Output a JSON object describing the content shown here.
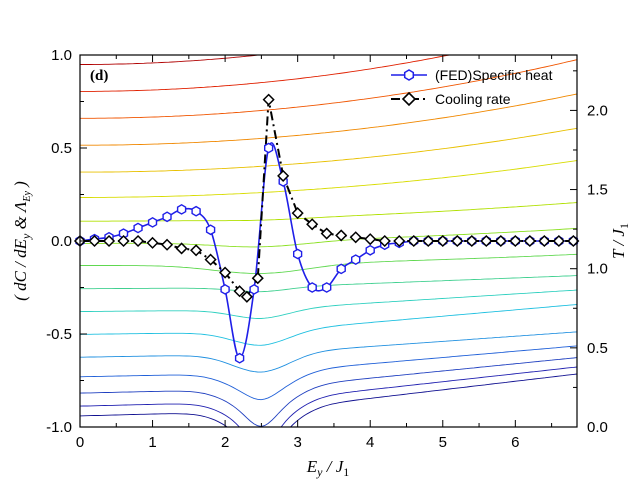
{
  "chart_data": {
    "type": "line",
    "panel_label": "(d)",
    "xlabel": "E_y / J_1",
    "xlabel_parts": [
      "E",
      "y",
      " / J",
      "1"
    ],
    "ylabel": "( dC / dE_y & Λ_Ey )",
    "ylabel_parts": [
      "( dC / dE",
      "y",
      " & Λ",
      "Ey",
      " )"
    ],
    "y2label": "T / J_1",
    "y2label_parts": [
      "T / J",
      "1"
    ],
    "xlim": [
      0,
      6.85
    ],
    "ylim": [
      -1.0,
      1.0
    ],
    "y2lim": [
      0.0,
      2.35
    ],
    "xticks": [
      0,
      1,
      2,
      3,
      4,
      5,
      6
    ],
    "xtick_labels": [
      "0",
      "1",
      "2",
      "3",
      "4",
      "5",
      "6"
    ],
    "yticks": [
      -1.0,
      -0.5,
      0.0,
      0.5,
      1.0
    ],
    "ytick_labels": [
      "-1.0",
      "-0.5",
      "0.0",
      "0.5",
      "1.0"
    ],
    "y2ticks": [
      0.0,
      0.5,
      1.0,
      1.5,
      2.0
    ],
    "y2tick_labels": [
      "0.0",
      "0.5",
      "1.0",
      "1.5",
      "2.0"
    ],
    "legend": [
      {
        "label": "(FED)Specific heat",
        "color": "#1f1fe8",
        "marker": "hexagon",
        "style": "solid"
      },
      {
        "label": "Cooling rate",
        "color": "#000000",
        "marker": "diamond",
        "style": "dash-dot"
      }
    ],
    "series": [
      {
        "name": "(FED)Specific heat",
        "color": "#1f1fe8",
        "x": [
          0.0,
          0.2,
          0.4,
          0.6,
          0.8,
          1.0,
          1.2,
          1.4,
          1.6,
          1.8,
          2.0,
          2.2,
          2.4,
          2.6,
          2.8,
          3.0,
          3.2,
          3.4,
          3.6,
          3.8,
          4.0,
          4.2,
          4.4,
          4.6,
          4.8,
          5.0,
          5.2,
          5.4,
          5.6,
          5.8,
          6.0,
          6.2,
          6.4,
          6.6,
          6.8
        ],
        "values": [
          0.0,
          0.01,
          0.02,
          0.04,
          0.07,
          0.1,
          0.13,
          0.17,
          0.16,
          0.06,
          -0.26,
          -0.63,
          -0.26,
          0.5,
          0.32,
          -0.07,
          -0.25,
          -0.25,
          -0.15,
          -0.1,
          -0.05,
          -0.02,
          -0.01,
          0.0,
          0.0,
          0.0,
          0.0,
          0.0,
          0.0,
          0.0,
          0.0,
          0.0,
          0.0,
          0.0,
          0.0
        ]
      },
      {
        "name": "Cooling rate",
        "color": "#000000",
        "x": [
          0.0,
          0.2,
          0.4,
          0.6,
          0.8,
          1.0,
          1.2,
          1.4,
          1.6,
          1.8,
          2.0,
          2.2,
          2.3,
          2.45,
          2.6,
          2.8,
          3.0,
          3.2,
          3.4,
          3.6,
          3.8,
          4.0,
          4.2,
          4.4,
          4.6,
          4.8,
          5.0,
          5.2,
          5.4,
          5.6,
          5.8,
          6.0,
          6.2,
          6.4,
          6.6,
          6.8
        ],
        "values": [
          0.0,
          0.0,
          0.0,
          0.0,
          0.0,
          -0.01,
          -0.02,
          -0.04,
          -0.05,
          -0.1,
          -0.17,
          -0.27,
          -0.3,
          -0.2,
          0.76,
          0.35,
          0.15,
          0.09,
          0.04,
          0.03,
          0.02,
          0.01,
          0.0,
          0.0,
          0.0,
          0.0,
          0.0,
          0.0,
          0.0,
          0.0,
          0.0,
          0.0,
          0.0,
          0.0,
          0.0,
          0.0
        ]
      }
    ],
    "isotherms": {
      "description": "constant-temperature contour lines (right axis T / J1)",
      "dip_center_x": 2.5,
      "levels": [
        {
          "T": 2.29,
          "color": "#b00000"
        },
        {
          "T": 2.12,
          "color": "#e02000"
        },
        {
          "T": 1.95,
          "color": "#f05500"
        },
        {
          "T": 1.78,
          "color": "#f08800"
        },
        {
          "T": 1.61,
          "color": "#e8c000"
        },
        {
          "T": 1.45,
          "color": "#d8dc00"
        },
        {
          "T": 1.3,
          "color": "#b0e000"
        },
        {
          "T": 1.16,
          "color": "#8ae020"
        },
        {
          "T": 1.02,
          "color": "#60d850"
        },
        {
          "T": 0.88,
          "color": "#40d090"
        },
        {
          "T": 0.74,
          "color": "#30d0c0"
        },
        {
          "T": 0.6,
          "color": "#20c0e0"
        },
        {
          "T": 0.46,
          "color": "#2090e0"
        },
        {
          "T": 0.34,
          "color": "#2060d8"
        },
        {
          "T": 0.24,
          "color": "#2040c0"
        },
        {
          "T": 0.16,
          "color": "#2020b0"
        },
        {
          "T": 0.1,
          "color": "#101090"
        }
      ]
    }
  }
}
